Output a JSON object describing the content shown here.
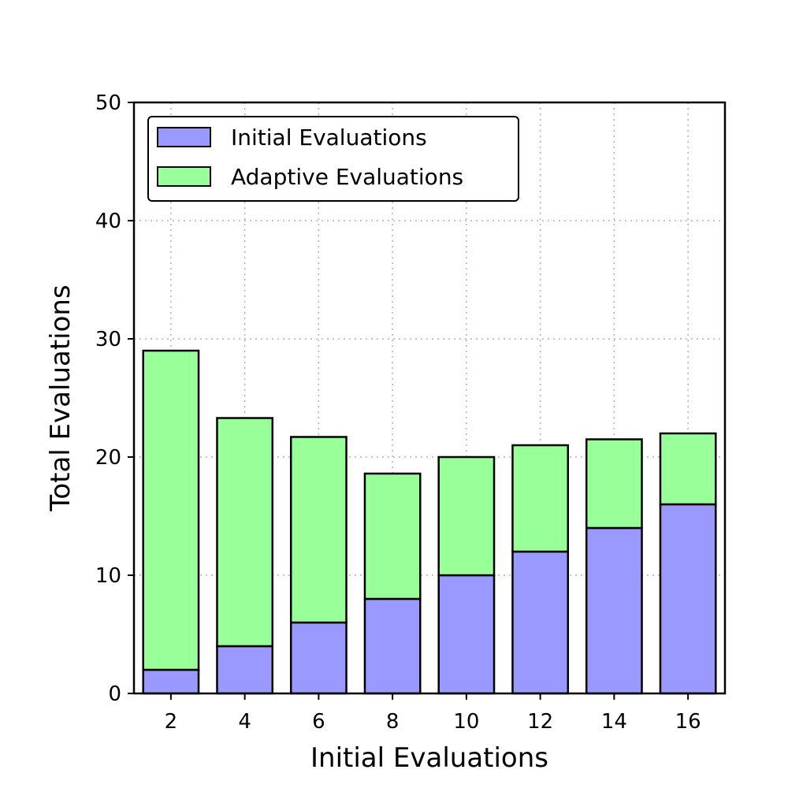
{
  "chart_data": {
    "type": "bar",
    "stacked": true,
    "categories": [
      "2",
      "4",
      "6",
      "8",
      "10",
      "12",
      "14",
      "16"
    ],
    "series": [
      {
        "name": "Initial Evaluations",
        "color": "#9999ff",
        "values": [
          2,
          4,
          6,
          8,
          10,
          12,
          14,
          16
        ]
      },
      {
        "name": "Adaptive Evaluations",
        "color": "#99ff99",
        "values": [
          27,
          19.3,
          15.7,
          10.6,
          10,
          9,
          7.5,
          6
        ]
      }
    ],
    "xlabel": "Initial Evaluations",
    "ylabel": "Total Evaluations",
    "ylim": [
      0,
      50
    ],
    "yticks": [
      0,
      10,
      20,
      30,
      40,
      50
    ],
    "grid": true,
    "legend_position": "top-left"
  }
}
